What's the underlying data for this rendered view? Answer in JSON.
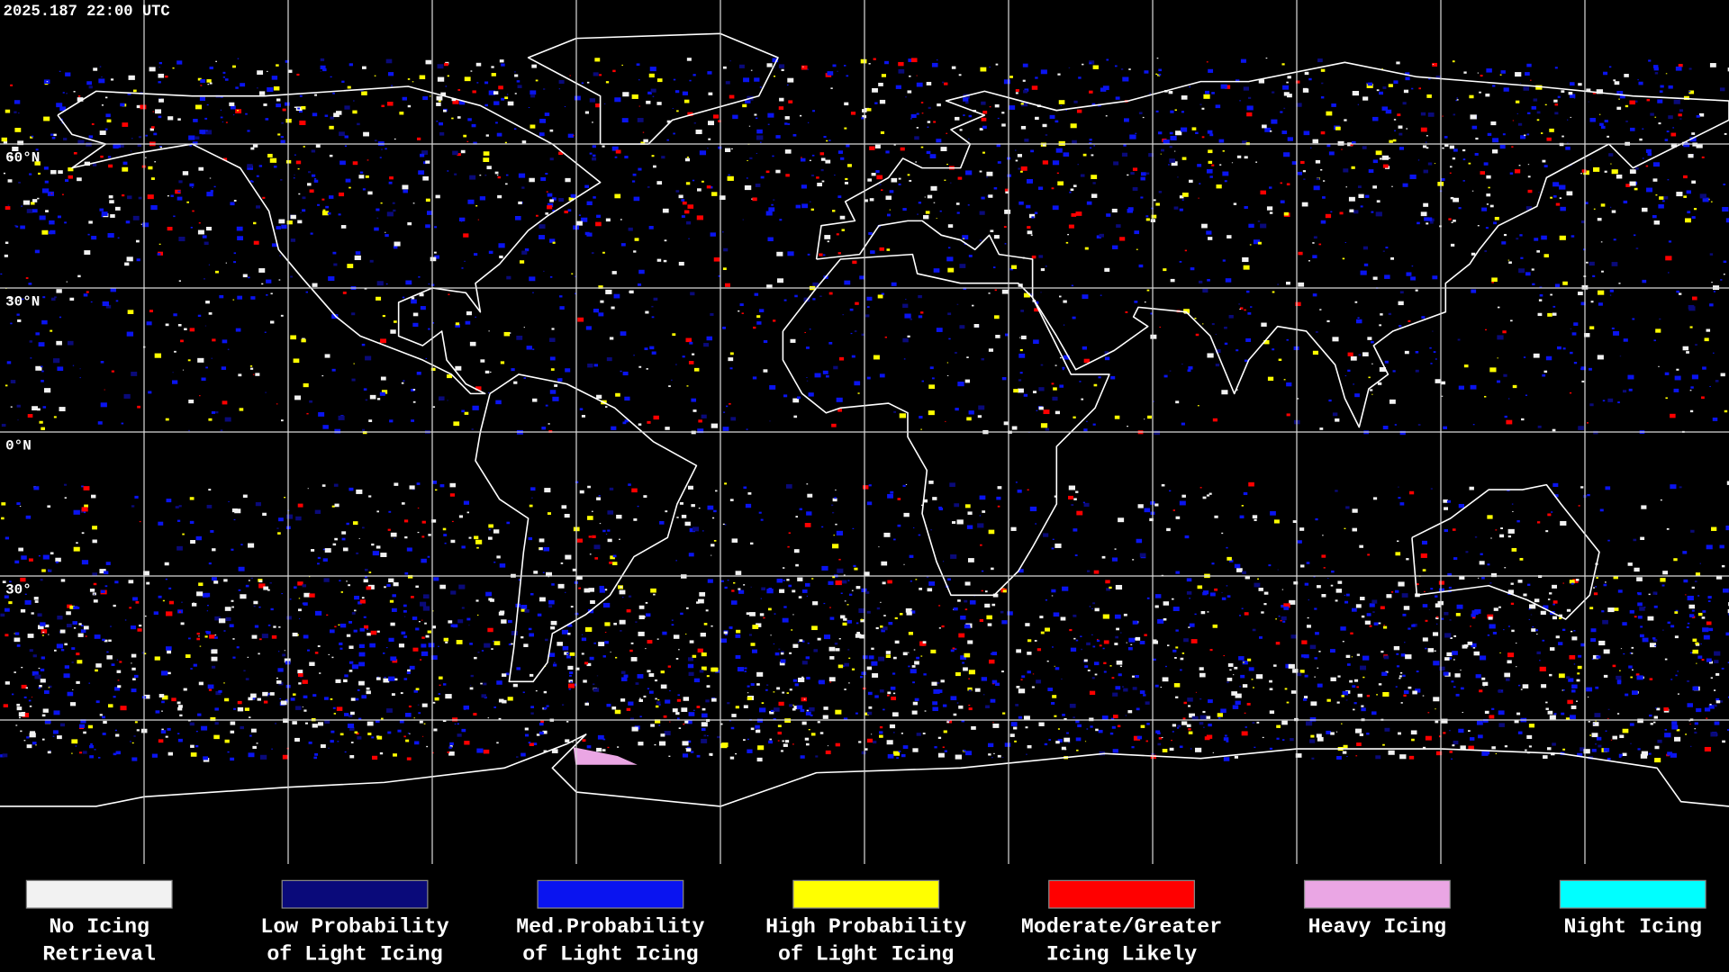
{
  "header": {
    "timestamp": "2025.187 22:00 UTC"
  },
  "map": {
    "latitude_labels": [
      "60°N",
      "30°N",
      "0°N",
      "30°"
    ]
  },
  "legend": {
    "items": [
      {
        "color": "#f2f2f2",
        "label": [
          "No Icing",
          "Retrieval"
        ]
      },
      {
        "color": "#0a0a7a",
        "label": [
          "Low Probability",
          "of Light Icing"
        ]
      },
      {
        "color": "#0a14f0",
        "label": [
          "Med.Probability",
          "of Light Icing"
        ]
      },
      {
        "color": "#ffff00",
        "label": [
          "High Probability",
          "of Light Icing"
        ]
      },
      {
        "color": "#ff0000",
        "label": [
          "Moderate/Greater",
          "Icing Likely"
        ]
      },
      {
        "color": "#eaa6e4",
        "label": [
          "Heavy Icing"
        ]
      },
      {
        "color": "#00ffff",
        "label": [
          "Night Icing"
        ]
      }
    ]
  }
}
